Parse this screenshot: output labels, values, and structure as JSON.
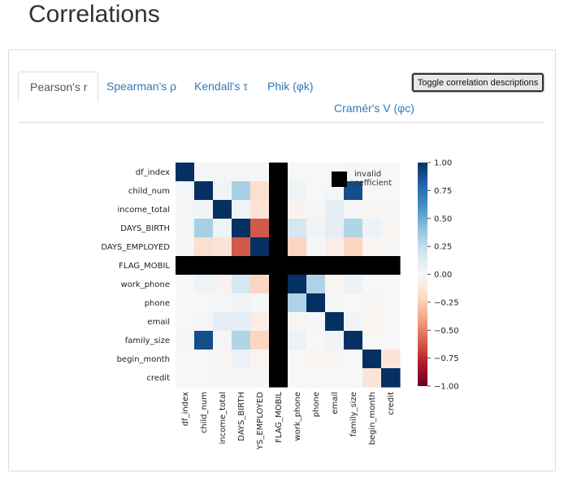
{
  "page": {
    "title": "Correlations"
  },
  "tabs": [
    {
      "label": "Pearson's r",
      "active": true
    },
    {
      "label": "Spearman's ρ",
      "active": false
    },
    {
      "label": "Kendall's τ",
      "active": false
    },
    {
      "label": "Phik (φk)",
      "active": false
    },
    {
      "label": "Cramér's V (φc)",
      "active": false
    }
  ],
  "toggle_button": {
    "label": "Toggle correlation descriptions"
  },
  "colors": {
    "link": "#337ab7",
    "invalid": "#000000"
  },
  "chart_data": {
    "type": "heatmap",
    "variables": [
      "df_index",
      "child_num",
      "income_total",
      "DAYS_BIRTH",
      "DAYS_EMPLOYED",
      "FLAG_MOBIL",
      "work_phone",
      "phone",
      "email",
      "family_size",
      "begin_month",
      "credit"
    ],
    "x_tick_labels": [
      "df_index",
      "child_num",
      "income_total",
      "DAYS_BIRTH",
      "YS_EMPLOYED",
      "FLAG_MOBIL",
      "work_phone",
      "phone",
      "email",
      "family_size",
      "begin_month",
      "credit"
    ],
    "invalid_variables": [
      "FLAG_MOBIL"
    ],
    "matrix": [
      [
        1.0,
        0.02,
        0.02,
        0.02,
        0.01,
        null,
        0.0,
        0.0,
        0.0,
        0.02,
        0.0,
        0.0
      ],
      [
        0.02,
        1.0,
        0.03,
        0.33,
        -0.17,
        null,
        0.05,
        0.0,
        0.02,
        0.89,
        0.0,
        0.0
      ],
      [
        0.02,
        0.03,
        1.0,
        0.05,
        -0.14,
        null,
        -0.03,
        0.02,
        0.1,
        0.02,
        -0.02,
        0.01
      ],
      [
        0.02,
        0.33,
        0.05,
        1.0,
        -0.62,
        null,
        0.18,
        0.03,
        0.1,
        0.3,
        0.06,
        -0.02
      ],
      [
        0.01,
        -0.17,
        -0.14,
        -0.62,
        1.0,
        null,
        -0.22,
        0.01,
        -0.07,
        -0.22,
        -0.02,
        0.01
      ],
      [
        null,
        null,
        null,
        null,
        null,
        null,
        null,
        null,
        null,
        null,
        null,
        null
      ],
      [
        0.0,
        0.05,
        -0.03,
        0.18,
        -0.22,
        null,
        1.0,
        0.31,
        -0.02,
        0.06,
        0.0,
        0.0
      ],
      [
        0.0,
        0.0,
        0.02,
        0.03,
        0.01,
        null,
        0.31,
        1.0,
        0.01,
        0.0,
        -0.02,
        0.0
      ],
      [
        0.0,
        0.02,
        0.1,
        0.1,
        -0.07,
        null,
        -0.02,
        0.01,
        1.0,
        0.03,
        -0.02,
        0.0
      ],
      [
        0.02,
        0.89,
        0.02,
        0.3,
        -0.22,
        null,
        0.06,
        0.0,
        0.03,
        1.0,
        0.0,
        0.0
      ],
      [
        0.0,
        0.0,
        -0.02,
        0.06,
        -0.02,
        null,
        0.0,
        -0.02,
        -0.02,
        0.0,
        1.0,
        -0.13
      ],
      [
        0.0,
        0.0,
        0.01,
        -0.02,
        0.01,
        null,
        0.0,
        0.0,
        0.0,
        0.0,
        -0.13,
        1.0
      ]
    ],
    "vmin": -1.0,
    "vmax": 1.0,
    "colormap": "RdBu",
    "colorbar_ticks": [
      "1.00",
      "0.75",
      "0.50",
      "0.25",
      "0.00",
      "−0.25",
      "−0.50",
      "−0.75",
      "−1.00"
    ],
    "colorbar_tick_values": [
      1.0,
      0.75,
      0.5,
      0.25,
      0.0,
      -0.25,
      -0.5,
      -0.75,
      -1.0
    ],
    "legend": {
      "label_line1": "invalid",
      "label_line2": "coefficient",
      "placement": "top-right"
    }
  }
}
